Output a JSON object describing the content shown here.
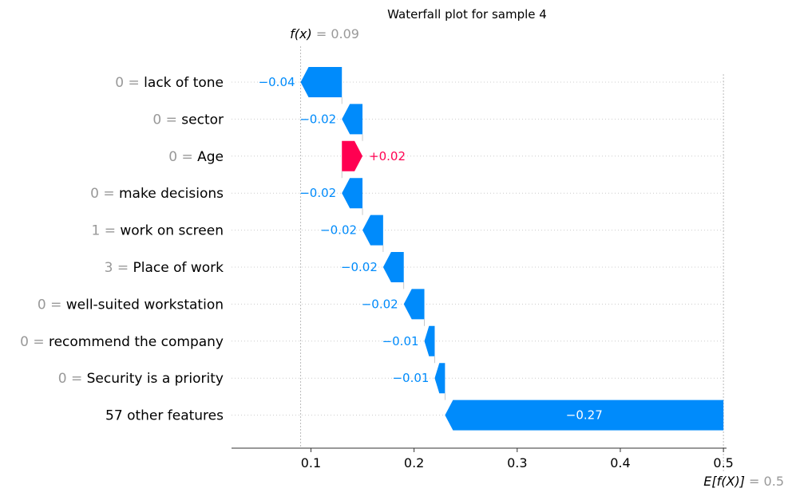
{
  "chart_data": {
    "type": "waterfall",
    "title": "Waterfall plot for sample 4",
    "base_value": 0.5,
    "base_value_label": "0.5",
    "fx_value": 0.09,
    "fx_value_label": "0.09",
    "fx_name": "f(x)",
    "ex_name": "E[f(X)]",
    "equals": "=",
    "xlim": [
      0.023,
      0.503
    ],
    "xticks": [
      0.1,
      0.2,
      0.3,
      0.4,
      0.5
    ],
    "xtick_labels": [
      "0.1",
      "0.2",
      "0.3",
      "0.4",
      "0.5"
    ],
    "colors": {
      "negative": "#008bfb",
      "positive": "#ff0051",
      "muted": "#999999",
      "gridline": "#cccccc"
    },
    "features": [
      {
        "value": "0",
        "name": "lack of tone",
        "contribution": -0.04,
        "label": "−0.04"
      },
      {
        "value": "0",
        "name": "sector",
        "contribution": -0.02,
        "label": "−0.02"
      },
      {
        "value": "0",
        "name": "Age",
        "contribution": 0.02,
        "label": "+0.02"
      },
      {
        "value": "0",
        "name": "make decisions",
        "contribution": -0.02,
        "label": "−0.02"
      },
      {
        "value": "1",
        "name": "work on screen",
        "contribution": -0.02,
        "label": "−0.02"
      },
      {
        "value": "3",
        "name": "Place of work",
        "contribution": -0.02,
        "label": "−0.02"
      },
      {
        "value": "0",
        "name": "well-suited workstation",
        "contribution": -0.02,
        "label": "−0.02"
      },
      {
        "value": "0",
        "name": "recommend the company",
        "contribution": -0.01,
        "label": "−0.01"
      },
      {
        "value": "0",
        "name": "Security is a priority",
        "contribution": -0.01,
        "label": "−0.01"
      },
      {
        "value": "",
        "name": "57 other features",
        "contribution": -0.27,
        "label": "−0.27"
      }
    ]
  }
}
